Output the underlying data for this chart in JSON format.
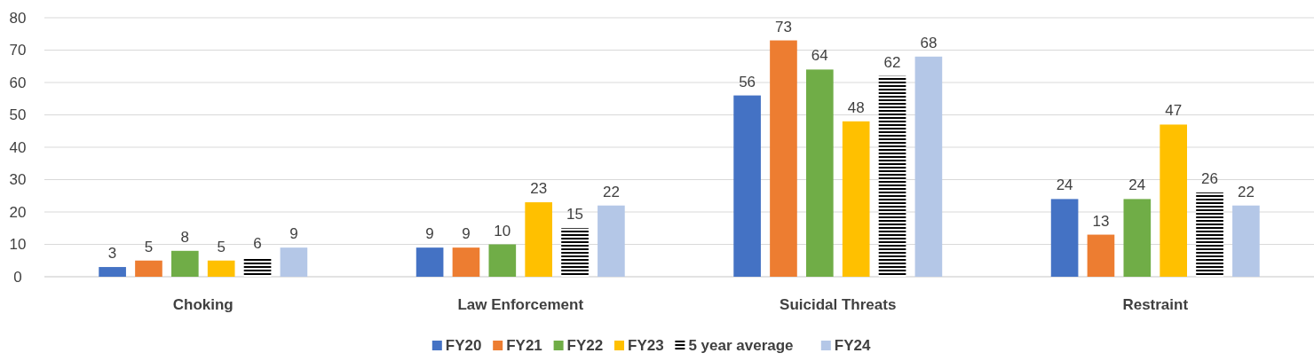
{
  "chart_data": {
    "type": "bar",
    "categories": [
      "Choking",
      "Law Enforcement",
      "Suicidal Threats",
      "Restraint"
    ],
    "series": [
      {
        "name": "FY20",
        "color": "#4472c4",
        "values": [
          3,
          9,
          56,
          24
        ]
      },
      {
        "name": "FY21",
        "color": "#ed7d31",
        "values": [
          5,
          9,
          73,
          13
        ]
      },
      {
        "name": "FY22",
        "color": "#70ad47",
        "values": [
          8,
          10,
          64,
          24
        ]
      },
      {
        "name": "FY23",
        "color": "#ffc000",
        "values": [
          5,
          23,
          48,
          47
        ]
      },
      {
        "name": "5 year average",
        "color": "#000000",
        "values": [
          6,
          15,
          62,
          26
        ]
      },
      {
        "name": "FY24",
        "color": "#b4c7e7",
        "values": [
          9,
          22,
          68,
          22
        ]
      }
    ],
    "ylim": [
      0,
      80
    ],
    "yticks": [
      0,
      10,
      20,
      30,
      40,
      50,
      60,
      70,
      80
    ],
    "grid": "y",
    "data_labels": true,
    "legend": "bottom"
  }
}
